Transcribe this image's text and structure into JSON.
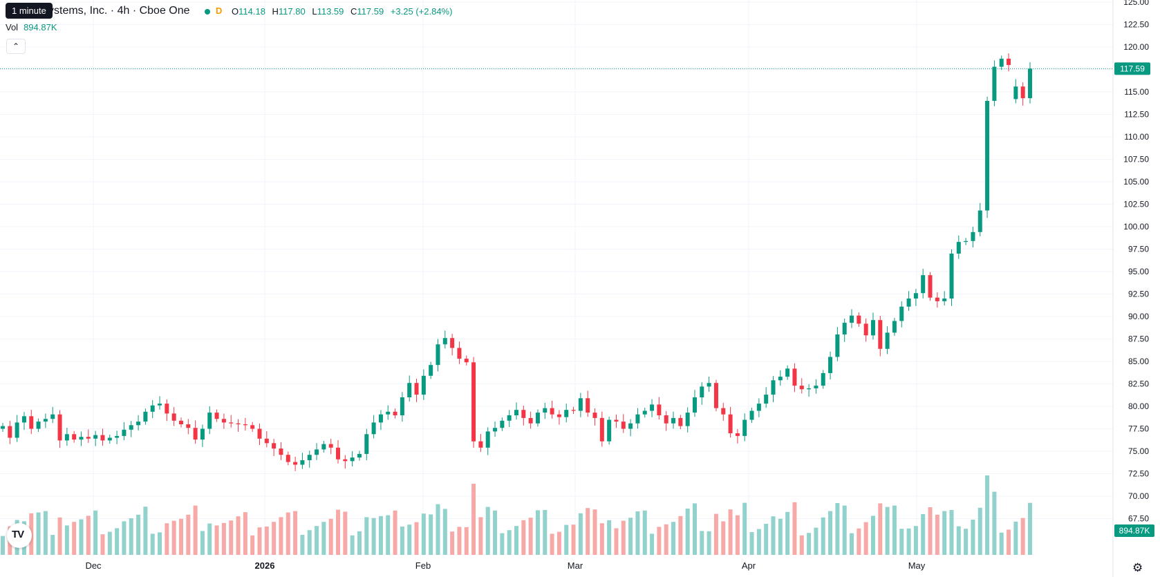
{
  "header": {
    "title": "ystems, Inc. · 4h · Cboe One",
    "interval_flag": "D",
    "tooltip": "1 minute",
    "ohlc": {
      "o_label": "O",
      "o": "114.18",
      "h_label": "H",
      "h": "117.80",
      "l_label": "L",
      "l": "113.59",
      "c_label": "C",
      "c": "117.59",
      "change": "+3.25 (+2.84%)"
    },
    "volume_label": "Vol",
    "volume_value": "894.87K",
    "collapse_icon": "chevron-up-icon"
  },
  "price_scale": {
    "labels": [
      "125.00",
      "122.50",
      "120.00",
      "117.50",
      "115.00",
      "112.50",
      "110.00",
      "107.50",
      "105.00",
      "102.50",
      "100.00",
      "97.50",
      "95.00",
      "92.50",
      "90.00",
      "87.50",
      "85.00",
      "82.50",
      "80.00",
      "77.50",
      "75.00",
      "72.50",
      "70.00",
      "67.50"
    ],
    "current_price": "117.59",
    "current_volume": "894.87K"
  },
  "time_scale": {
    "labels": [
      "Dec",
      "2026",
      "Feb",
      "Mar",
      "Apr",
      "May"
    ]
  },
  "colors": {
    "up": "#089981",
    "down": "#f23645",
    "up_vol": "#92d2cc",
    "down_vol": "#f7a9a7",
    "grid": "#f0f3fa"
  },
  "branding": {
    "logo_text": "TV",
    "settings_icon": "gear-icon"
  },
  "chart_data": {
    "type": "candlestick",
    "x_labels": [
      "Dec",
      "2026",
      "Feb",
      "Mar",
      "Apr",
      "May"
    ],
    "y_range": [
      67.5,
      125.0
    ],
    "last_close": 117.59,
    "closes": [
      77.8,
      76.5,
      78.2,
      78.9,
      77.5,
      78.3,
      78.6,
      79.1,
      76.2,
      76.9,
      76.3,
      76.6,
      76.4,
      76.8,
      76.2,
      76.5,
      76.7,
      77.4,
      77.9,
      78.3,
      79.4,
      80.1,
      80.3,
      79.2,
      78.4,
      78.0,
      77.6,
      76.3,
      77.5,
      79.3,
      78.6,
      78.2,
      78.1,
      78.0,
      77.9,
      77.5,
      76.4,
      75.9,
      75.3,
      74.6,
      73.8,
      73.5,
      74.0,
      74.6,
      75.2,
      75.8,
      75.4,
      74.1,
      73.9,
      74.3,
      74.7,
      76.9,
      78.2,
      79.1,
      79.4,
      79.0,
      81.0,
      82.6,
      81.3,
      83.4,
      84.6,
      86.9,
      87.6,
      86.5,
      85.3,
      84.9,
      76.1,
      75.4,
      77.2,
      77.6,
      78.4,
      79.0,
      79.6,
      78.7,
      78.1,
      79.3,
      79.8,
      79.1,
      78.8,
      79.6,
      79.5,
      80.9,
      79.3,
      78.7,
      76.1,
      78.5,
      78.3,
      77.5,
      78.1,
      79.1,
      79.5,
      80.2,
      79.0,
      78.1,
      78.7,
      77.8,
      79.3,
      81.0,
      82.2,
      82.6,
      79.8,
      79.1,
      77.0,
      76.7,
      78.5,
      79.5,
      80.3,
      81.3,
      82.9,
      83.3,
      84.2,
      82.3,
      81.9,
      82.0,
      82.3,
      83.7,
      85.5,
      88.0,
      89.3,
      90.1,
      89.2,
      87.9,
      89.6,
      86.4,
      88.2,
      89.5,
      91.1,
      92.0,
      92.6,
      94.6,
      92.1,
      91.7,
      92.0,
      97.0,
      98.3,
      98.4,
      99.4,
      101.8,
      114.0,
      117.8,
      118.7,
      118.0,
      115.6,
      114.3,
      117.59
    ]
  }
}
